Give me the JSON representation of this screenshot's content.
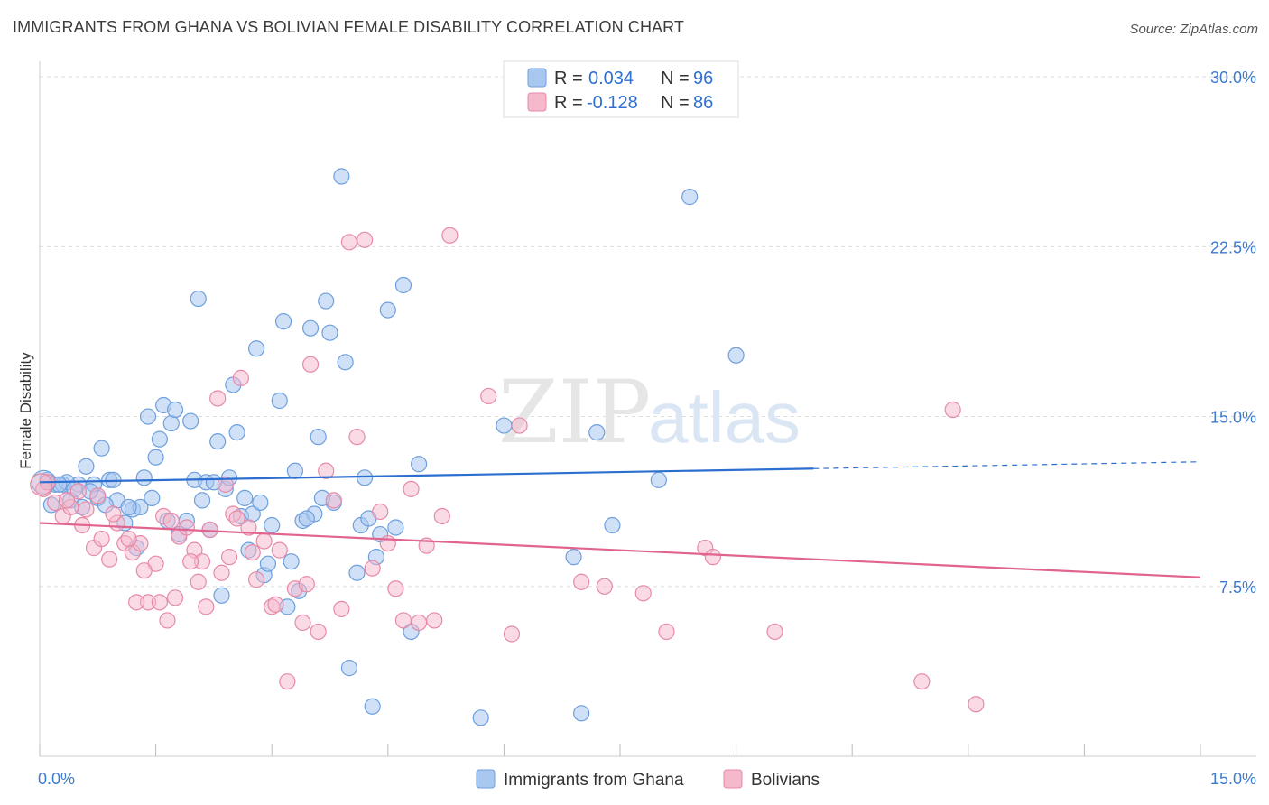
{
  "title": "IMMIGRANTS FROM GHANA VS BOLIVIAN FEMALE DISABILITY CORRELATION CHART",
  "source": "Source: ZipAtlas.com",
  "watermark": {
    "zip": "ZIP",
    "atlas": "atlas"
  },
  "legend": {
    "rows": [
      {
        "r_label": "R = ",
        "r_value": "0.034",
        "n_label": "N = ",
        "n_value": "96",
        "color": "#a9c8f0"
      },
      {
        "r_label": "R = ",
        "r_value": "-0.128",
        "n_label": "N = ",
        "n_value": "86",
        "color": "#f6b8cb"
      }
    ]
  },
  "colors": {
    "ghana_fill": "#a9c8f0",
    "ghana_stroke": "#6e9fdd",
    "ghana_line": "#2d6fd0",
    "bolivia_fill": "#f6b8cb",
    "bolivia_stroke": "#e68aa8",
    "bolivia_line": "#e0648f",
    "tick_label": "#3d7bd0",
    "grid": "#dddddd"
  },
  "chart_data": {
    "type": "scatter",
    "title": "IMMIGRANTS FROM GHANA VS BOLIVIAN FEMALE DISABILITY CORRELATION CHART",
    "xlabel": "",
    "ylabel": "Female Disability",
    "xlim": [
      0,
      15
    ],
    "ylim": [
      0,
      31
    ],
    "x_tick_labels": [
      "0.0%",
      "15.0%"
    ],
    "y_ticks": [
      7.5,
      15.0,
      22.5,
      30.0
    ],
    "y_tick_labels": [
      "7.5%",
      "15.0%",
      "22.5%",
      "30.0%"
    ],
    "grid": "horizontal dashed",
    "legend_position": "top-center",
    "series": [
      {
        "name": "Immigrants from Ghana",
        "trend": {
          "x": [
            0,
            10
          ],
          "y": [
            12.1,
            12.7
          ],
          "dashed_to": [
            15,
            13.0
          ]
        },
        "points": [
          [
            0.1,
            12.2
          ],
          [
            0.2,
            12.0
          ],
          [
            0.3,
            12.0
          ],
          [
            0.4,
            11.3
          ],
          [
            0.5,
            12.0
          ],
          [
            0.6,
            12.8
          ],
          [
            0.7,
            12.0
          ],
          [
            0.8,
            13.6
          ],
          [
            0.9,
            12.2
          ],
          [
            1.0,
            11.3
          ],
          [
            1.1,
            10.3
          ],
          [
            1.2,
            10.9
          ],
          [
            1.3,
            11.0
          ],
          [
            1.4,
            15.0
          ],
          [
            1.5,
            13.2
          ],
          [
            1.6,
            15.5
          ],
          [
            1.7,
            14.7
          ],
          [
            1.8,
            9.8
          ],
          [
            1.9,
            10.4
          ],
          [
            2.0,
            12.2
          ],
          [
            2.1,
            11.3
          ],
          [
            2.2,
            10.0
          ],
          [
            2.3,
            13.9
          ],
          [
            2.4,
            11.8
          ],
          [
            2.5,
            16.4
          ],
          [
            2.6,
            10.6
          ],
          [
            2.7,
            9.1
          ],
          [
            2.8,
            18.0
          ],
          [
            2.9,
            8.0
          ],
          [
            3.0,
            10.2
          ],
          [
            3.1,
            15.7
          ],
          [
            3.2,
            6.6
          ],
          [
            3.3,
            12.6
          ],
          [
            3.4,
            10.4
          ],
          [
            3.5,
            18.9
          ],
          [
            3.6,
            14.1
          ],
          [
            3.7,
            20.1
          ],
          [
            3.8,
            11.2
          ],
          [
            3.9,
            25.6
          ],
          [
            4.0,
            3.9
          ],
          [
            4.1,
            8.1
          ],
          [
            4.2,
            12.3
          ],
          [
            4.3,
            2.2
          ],
          [
            4.4,
            9.8
          ],
          [
            4.5,
            19.7
          ],
          [
            4.6,
            10.1
          ],
          [
            4.7,
            20.8
          ],
          [
            4.8,
            5.5
          ],
          [
            4.9,
            12.9
          ],
          [
            5.7,
            1.7
          ],
          [
            6.0,
            14.6
          ],
          [
            6.9,
            8.8
          ],
          [
            7.0,
            1.9
          ],
          [
            7.2,
            14.3
          ],
          [
            7.4,
            10.2
          ],
          [
            8.0,
            12.2
          ],
          [
            8.4,
            24.7
          ],
          [
            9.0,
            17.7
          ],
          [
            0.15,
            11.1
          ],
          [
            0.35,
            12.1
          ],
          [
            0.55,
            11.0
          ],
          [
            0.75,
            11.4
          ],
          [
            0.95,
            12.2
          ],
          [
            1.15,
            11.0
          ],
          [
            1.35,
            12.3
          ],
          [
            1.55,
            14.0
          ],
          [
            1.75,
            15.3
          ],
          [
            1.95,
            14.8
          ],
          [
            2.15,
            12.1
          ],
          [
            2.35,
            7.1
          ],
          [
            2.55,
            14.3
          ],
          [
            2.75,
            10.7
          ],
          [
            2.95,
            8.5
          ],
          [
            3.15,
            19.2
          ],
          [
            3.35,
            7.3
          ],
          [
            3.55,
            10.7
          ],
          [
            3.75,
            18.7
          ],
          [
            3.95,
            17.4
          ],
          [
            4.15,
            10.2
          ],
          [
            4.35,
            8.8
          ],
          [
            2.05,
            20.2
          ],
          [
            2.45,
            12.3
          ],
          [
            1.25,
            9.2
          ],
          [
            0.85,
            11.1
          ],
          [
            0.45,
            11.8
          ],
          [
            0.65,
            11.7
          ],
          [
            0.25,
            12.0
          ],
          [
            1.45,
            11.4
          ],
          [
            2.65,
            11.4
          ],
          [
            3.45,
            10.5
          ],
          [
            4.25,
            10.5
          ],
          [
            1.65,
            10.4
          ],
          [
            2.25,
            12.1
          ],
          [
            2.85,
            11.2
          ],
          [
            3.25,
            8.6
          ],
          [
            3.65,
            11.4
          ]
        ]
      },
      {
        "name": "Bolivians",
        "trend": {
          "x": [
            0,
            15
          ],
          "y": [
            10.3,
            7.9
          ]
        },
        "points": [
          [
            0.05,
            11.8
          ],
          [
            0.2,
            11.2
          ],
          [
            0.3,
            10.6
          ],
          [
            0.4,
            11.0
          ],
          [
            0.5,
            11.7
          ],
          [
            0.6,
            10.9
          ],
          [
            0.7,
            9.2
          ],
          [
            0.8,
            9.6
          ],
          [
            0.9,
            8.7
          ],
          [
            1.0,
            10.3
          ],
          [
            1.1,
            9.4
          ],
          [
            1.2,
            9.0
          ],
          [
            1.3,
            9.4
          ],
          [
            1.4,
            6.8
          ],
          [
            1.5,
            8.5
          ],
          [
            1.6,
            10.6
          ],
          [
            1.7,
            10.4
          ],
          [
            1.8,
            9.7
          ],
          [
            1.9,
            10.1
          ],
          [
            2.0,
            9.1
          ],
          [
            2.1,
            8.6
          ],
          [
            2.2,
            10.0
          ],
          [
            2.3,
            15.8
          ],
          [
            2.4,
            12.0
          ],
          [
            2.5,
            10.7
          ],
          [
            2.6,
            16.7
          ],
          [
            2.7,
            10.1
          ],
          [
            2.8,
            7.8
          ],
          [
            2.9,
            9.5
          ],
          [
            3.0,
            6.6
          ],
          [
            3.1,
            9.1
          ],
          [
            3.2,
            3.3
          ],
          [
            3.3,
            7.4
          ],
          [
            3.4,
            5.9
          ],
          [
            3.5,
            17.3
          ],
          [
            3.6,
            5.5
          ],
          [
            3.7,
            12.6
          ],
          [
            3.8,
            11.3
          ],
          [
            3.9,
            6.5
          ],
          [
            4.0,
            22.7
          ],
          [
            4.1,
            14.1
          ],
          [
            4.2,
            22.8
          ],
          [
            4.3,
            8.3
          ],
          [
            4.4,
            10.8
          ],
          [
            4.5,
            9.4
          ],
          [
            4.6,
            7.4
          ],
          [
            4.7,
            6.0
          ],
          [
            4.8,
            11.8
          ],
          [
            4.9,
            5.9
          ],
          [
            5.0,
            9.3
          ],
          [
            5.1,
            6.0
          ],
          [
            5.2,
            10.6
          ],
          [
            5.3,
            23.0
          ],
          [
            5.8,
            15.9
          ],
          [
            6.1,
            5.4
          ],
          [
            6.2,
            14.6
          ],
          [
            7.0,
            7.7
          ],
          [
            7.3,
            7.5
          ],
          [
            7.8,
            7.2
          ],
          [
            8.1,
            5.5
          ],
          [
            8.6,
            9.2
          ],
          [
            8.7,
            8.8
          ],
          [
            9.5,
            5.5
          ],
          [
            11.4,
            3.3
          ],
          [
            11.8,
            15.3
          ],
          [
            12.1,
            2.3
          ],
          [
            0.1,
            12.1
          ],
          [
            0.35,
            11.3
          ],
          [
            0.55,
            10.2
          ],
          [
            0.75,
            11.5
          ],
          [
            0.95,
            10.7
          ],
          [
            1.15,
            9.6
          ],
          [
            1.35,
            8.2
          ],
          [
            1.55,
            6.8
          ],
          [
            1.75,
            7.0
          ],
          [
            1.95,
            8.6
          ],
          [
            2.15,
            6.6
          ],
          [
            2.35,
            8.1
          ],
          [
            2.55,
            10.5
          ],
          [
            2.75,
            9.0
          ],
          [
            1.25,
            6.8
          ],
          [
            1.65,
            6.0
          ],
          [
            2.05,
            7.7
          ],
          [
            2.45,
            8.8
          ],
          [
            3.05,
            6.7
          ],
          [
            3.45,
            7.6
          ]
        ]
      }
    ]
  },
  "bottom_legend": [
    {
      "label": "Immigrants from Ghana",
      "color": "#a9c8f0"
    },
    {
      "label": "Bolivians",
      "color": "#f6b8cb"
    }
  ]
}
